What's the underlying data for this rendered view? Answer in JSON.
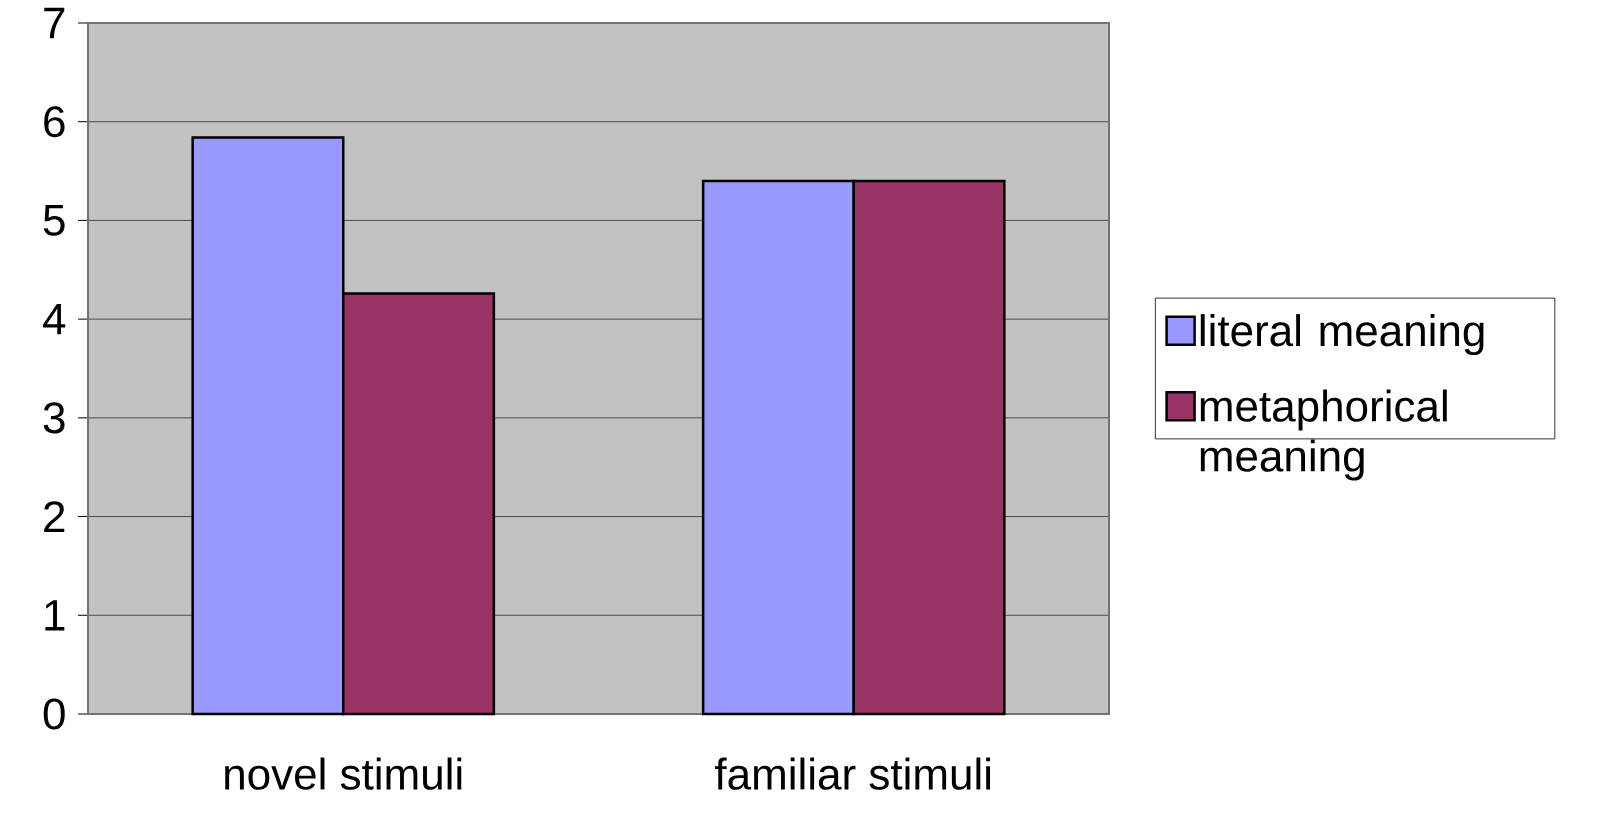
{
  "chart_data": {
    "type": "bar",
    "categories": [
      "novel stimuli",
      "familiar stimuli"
    ],
    "series": [
      {
        "name": "literal meaning",
        "color": "#9999ff",
        "values": [
          5.84,
          5.4
        ]
      },
      {
        "name": "metaphorical meaning",
        "color": "#993366",
        "values": [
          4.26,
          5.4
        ]
      }
    ],
    "ylim": [
      0,
      7
    ],
    "yticks": [
      0,
      1,
      2,
      3,
      4,
      5,
      6,
      7
    ],
    "grid": "y",
    "legend": "right"
  }
}
